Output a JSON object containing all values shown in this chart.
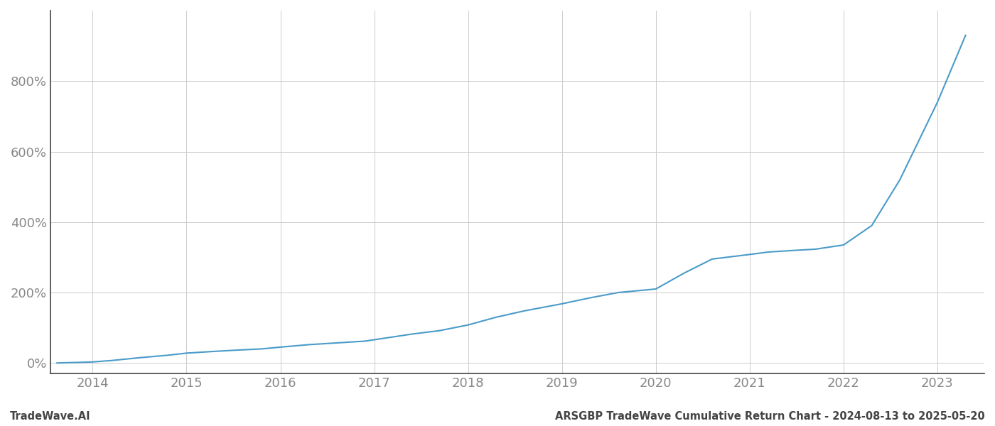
{
  "title": "ARSGBP TradeWave Cumulative Return Chart - 2024-08-13 to 2025-05-20",
  "watermark": "TradeWave.AI",
  "line_color": "#4a9bc9",
  "background_color": "#ffffff",
  "grid_color": "#cccccc",
  "text_color": "#888888",
  "footer_text_color": "#444444",
  "spine_color": "#444444",
  "x_years": [
    2014,
    2015,
    2016,
    2017,
    2018,
    2019,
    2020,
    2021,
    2022,
    2023
  ],
  "x_data": [
    2013.62,
    2013.75,
    2013.9,
    2014.0,
    2014.2,
    2014.5,
    2014.8,
    2015.0,
    2015.3,
    2015.5,
    2015.8,
    2016.0,
    2016.3,
    2016.6,
    2016.9,
    2017.1,
    2017.4,
    2017.7,
    2018.0,
    2018.3,
    2018.6,
    2019.0,
    2019.3,
    2019.6,
    2020.0,
    2020.3,
    2020.6,
    2021.0,
    2021.2,
    2021.5,
    2021.7,
    2022.0,
    2022.3,
    2022.6,
    2023.0,
    2023.3
  ],
  "y_data": [
    0,
    1,
    2,
    3,
    7,
    15,
    22,
    28,
    33,
    36,
    40,
    45,
    52,
    57,
    62,
    70,
    82,
    92,
    108,
    130,
    148,
    168,
    185,
    200,
    210,
    255,
    295,
    308,
    315,
    320,
    323,
    335,
    390,
    520,
    740,
    930
  ],
  "xlim": [
    2013.55,
    2023.5
  ],
  "ylim": [
    -30,
    1000
  ],
  "yticks": [
    0,
    200,
    400,
    600,
    800
  ],
  "tick_fontsize": 13,
  "footer_fontsize": 10.5
}
